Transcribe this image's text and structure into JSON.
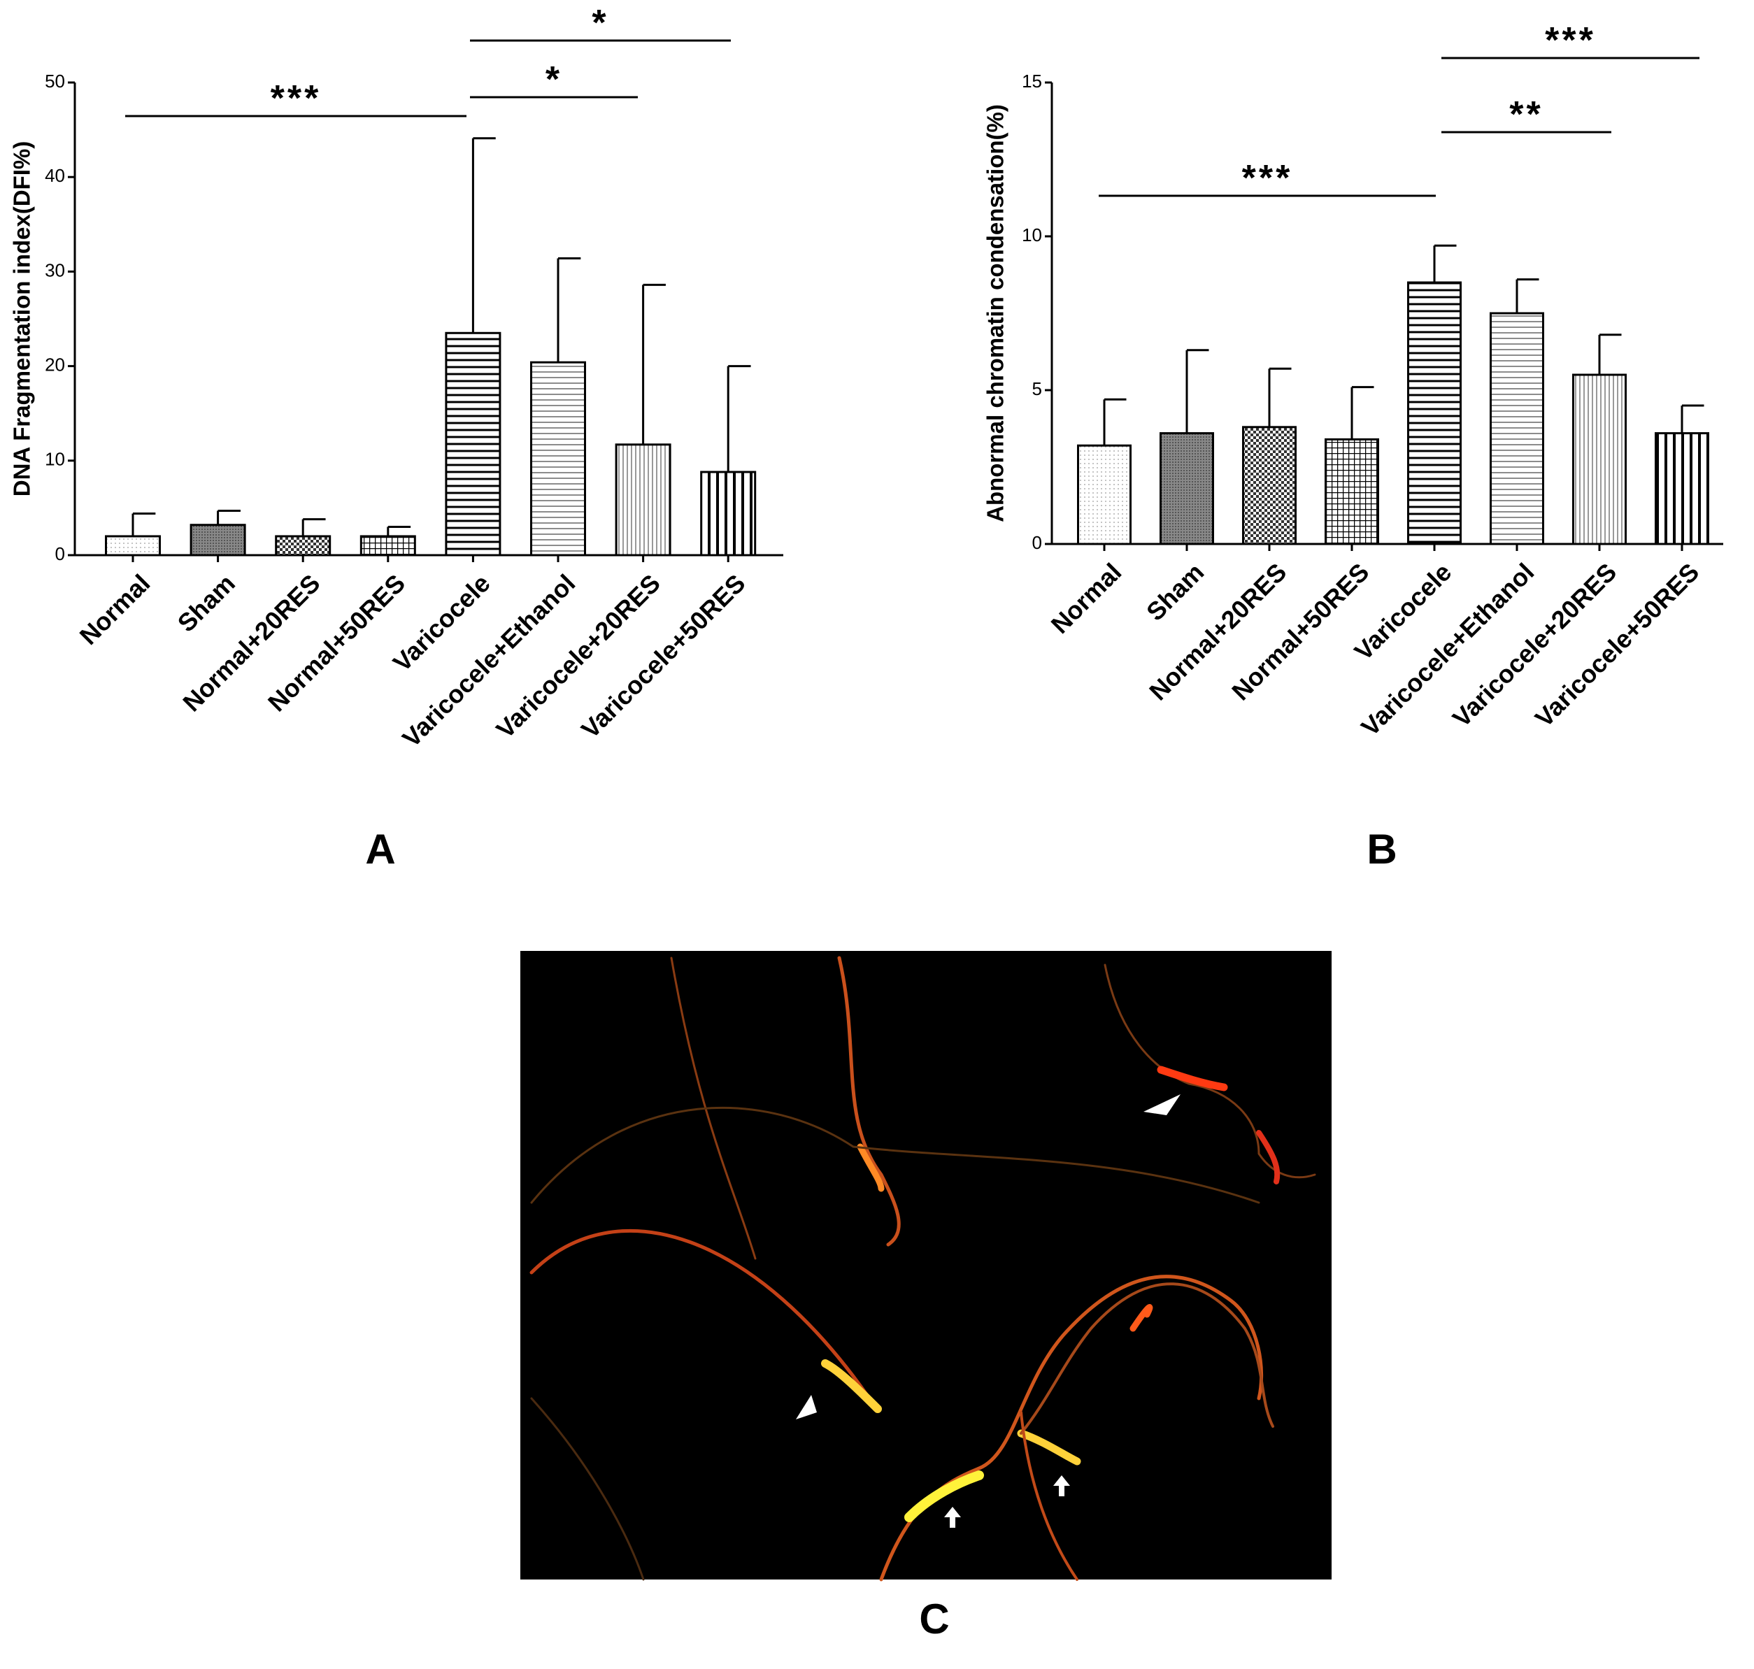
{
  "chart_data": [
    {
      "type": "bar",
      "panel_label": "A",
      "y_label": "DNA Fragmentation index(DFI%)",
      "categories": [
        "Normal",
        "Sham",
        "Normal+20RES",
        "Normal+50RES",
        "Varicocele",
        "Varicocele+Ethanol",
        "Varicocele+20RES",
        "Varicocele+50RES"
      ],
      "values": [
        2,
        3.2,
        2,
        2,
        23.5,
        20.4,
        11.7,
        8.8
      ],
      "errors": [
        2.4,
        1.5,
        1.8,
        1.0,
        20.6,
        11,
        16.9,
        11.2
      ],
      "ylim": [
        0,
        50
      ],
      "yticks": [
        0,
        10,
        20,
        30,
        40,
        50
      ],
      "annotations": [
        {
          "text": "***"
        },
        {
          "text": "*"
        },
        {
          "text": "*"
        }
      ]
    },
    {
      "type": "bar",
      "panel_label": "B",
      "y_label": "Abnormal chromatin condensation(%)",
      "categories": [
        "Normal",
        "Sham",
        "Normal+20RES",
        "Normal+50RES",
        "Varicocele",
        "Varicocele+Ethanol",
        "Varicocele+20RES",
        "Varicocele+50RES"
      ],
      "values": [
        3.2,
        3.6,
        3.8,
        3.4,
        8.5,
        7.5,
        5.5,
        3.6
      ],
      "errors": [
        1.5,
        2.7,
        1.9,
        1.7,
        1.2,
        1.1,
        1.3,
        0.9
      ],
      "ylim": [
        0,
        15
      ],
      "yticks": [
        0,
        5,
        10,
        15
      ],
      "annotations": [
        {
          "text": "***"
        },
        {
          "text": "**"
        },
        {
          "text": "***"
        }
      ]
    }
  ],
  "image_panel": {
    "label": "C"
  }
}
